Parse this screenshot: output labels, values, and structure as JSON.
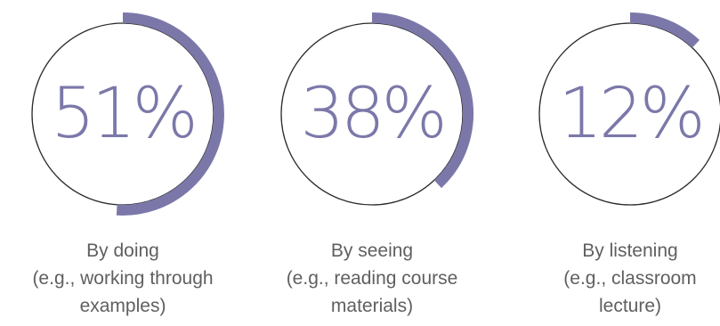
{
  "chart_data": [
    {
      "type": "pie",
      "value": 51,
      "value_label": "51%",
      "label_lines": [
        "By doing",
        "(e.g., working through",
        "examples)"
      ]
    },
    {
      "type": "pie",
      "value": 38,
      "value_label": "38%",
      "label_lines": [
        "By seeing",
        "(e.g., reading course",
        "materials)"
      ]
    },
    {
      "type": "pie",
      "value": 12,
      "value_label": "12%",
      "label_lines": [
        "By listening",
        "(e.g., classroom",
        "lecture)"
      ]
    }
  ],
  "colors": {
    "arc": "#7b78a9",
    "percent_text": "#7b78a9",
    "circle_outline": "#2b2b2b",
    "caption_text": "#5f5f5f"
  }
}
